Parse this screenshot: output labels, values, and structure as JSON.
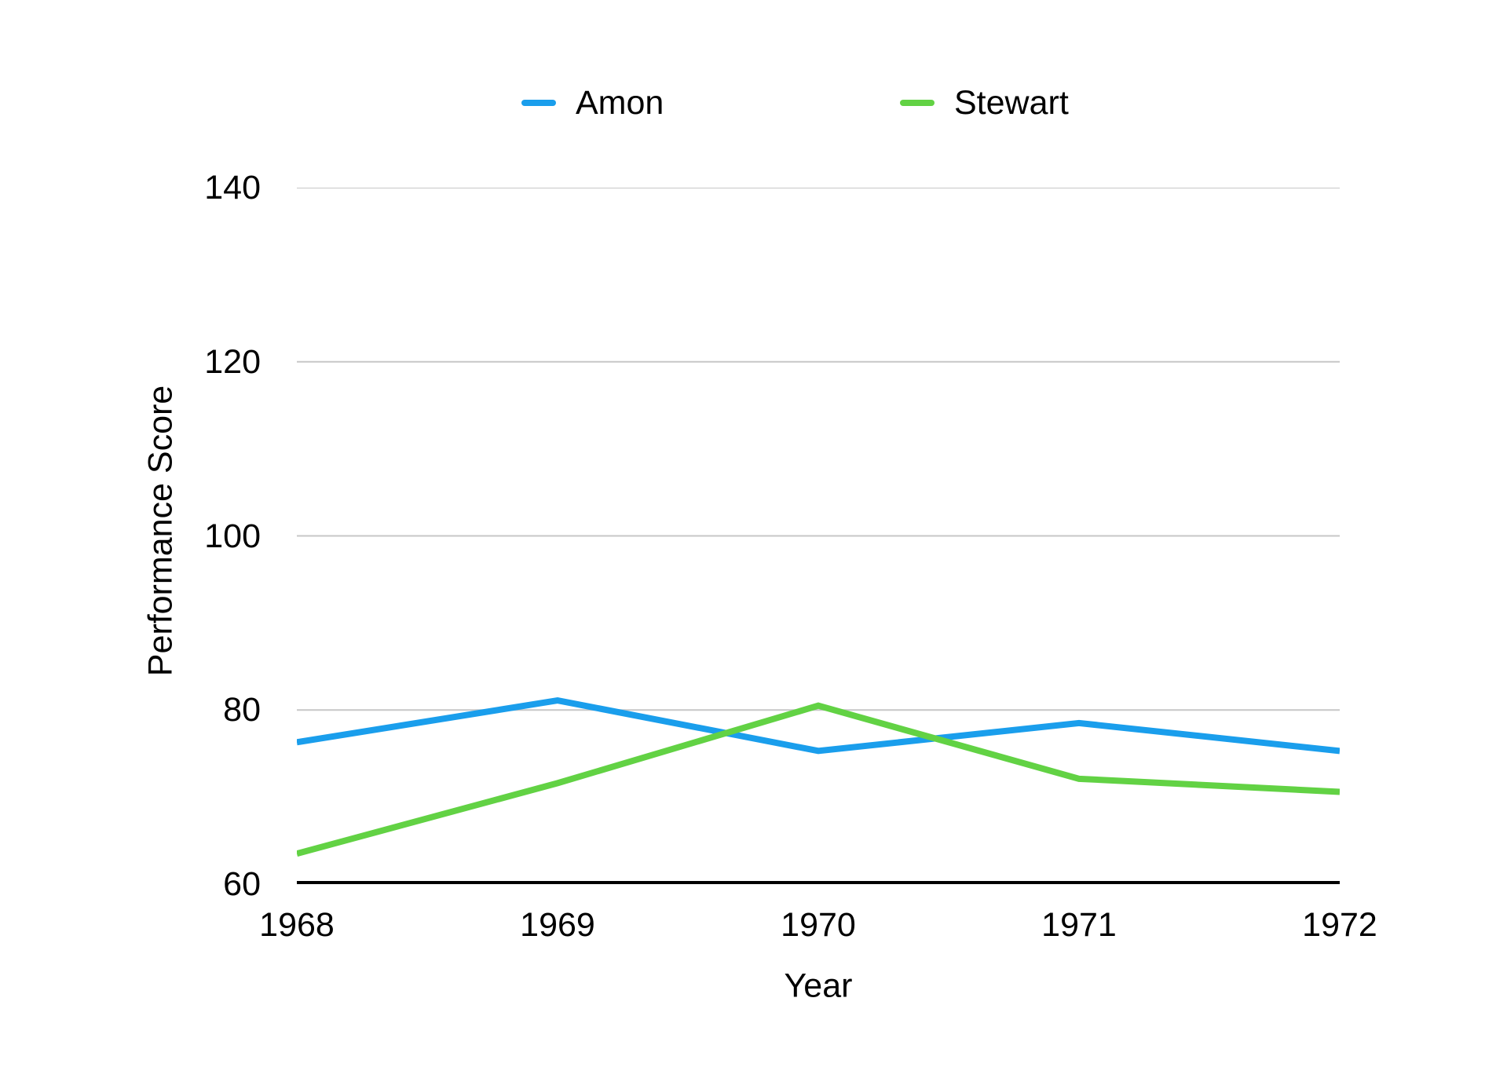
{
  "legend": {
    "items": [
      {
        "label": "Amon",
        "color": "#1a9eec"
      },
      {
        "label": "Stewart",
        "color": "#62d244"
      }
    ]
  },
  "chart_data": {
    "type": "line",
    "title": "",
    "xlabel": "Year",
    "ylabel": "Performance Score",
    "x": [
      1968,
      1969,
      1970,
      1971,
      1972
    ],
    "series": [
      {
        "name": "Amon",
        "color": "#1a9eec",
        "values": [
          76.3,
          81.1,
          75.3,
          78.5,
          75.3
        ]
      },
      {
        "name": "Stewart",
        "color": "#62d244",
        "values": [
          63.5,
          71.6,
          80.5,
          72.1,
          70.6
        ]
      }
    ],
    "ylim": [
      60,
      140
    ],
    "yticks": [
      60,
      80,
      100,
      120,
      140
    ],
    "grid": true,
    "gridline_color": "#c7c7c7",
    "axis_color": "#000000",
    "legend_position": "top",
    "line_width": 8
  }
}
